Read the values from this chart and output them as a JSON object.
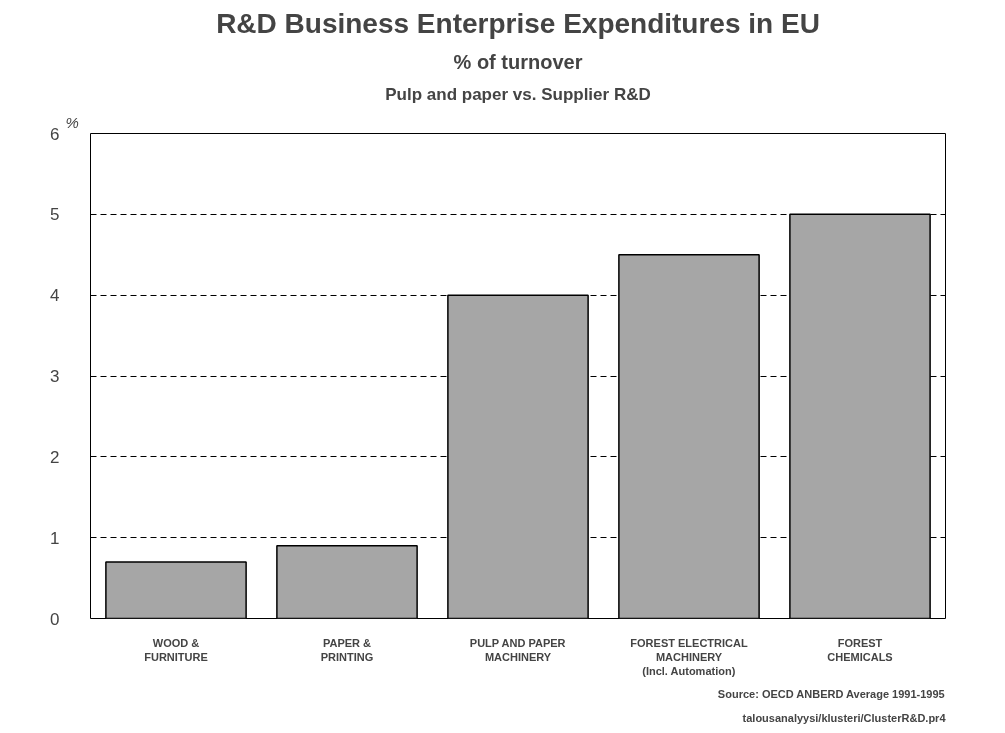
{
  "chart_data": {
    "type": "bar",
    "title": "R&D Business Enterprise Expenditures in EU",
    "subtitle": "% of turnover",
    "ylabel": "%",
    "categories": [
      "WOOD &\nFURNITURE",
      "PAPER &\nPRINTING",
      "PULP AND PAPER\nMACHINERY",
      "FOREST ELECTRICAL\nMACHINERY\n(Incl. Automation)",
      "FOREST\nCHEMICALS"
    ],
    "values": [
      0.7,
      0.9,
      4.0,
      4.5,
      5.0
    ],
    "color": "#a6a6a6",
    "ylim": [
      0,
      6
    ],
    "yticks": [
      0,
      1,
      2,
      3,
      4,
      5,
      6
    ],
    "grid": "y",
    "line_style": "dashed",
    "annotations": [
      "Pulp and paper vs. Supplier R&D",
      "Source: OECD ANBERD Average 1991-1995",
      "talousanalyysi/klusteri/ClusterR&D.pr4"
    ]
  }
}
